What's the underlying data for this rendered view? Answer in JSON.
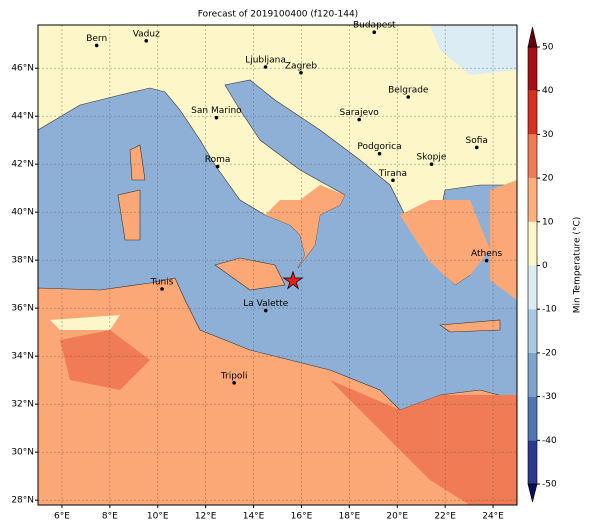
{
  "title": "Forecast of 2019100400 (f120-144)",
  "map": {
    "xlim": [
      5,
      25
    ],
    "ylim": [
      27.8,
      47.8
    ],
    "xticks": [
      {
        "value": 6,
        "label": "6°E"
      },
      {
        "value": 8,
        "label": "8°E"
      },
      {
        "value": 10,
        "label": "10°E"
      },
      {
        "value": 12,
        "label": "12°E"
      },
      {
        "value": 14,
        "label": "14°E"
      },
      {
        "value": 16,
        "label": "16°E"
      },
      {
        "value": 18,
        "label": "18°E"
      },
      {
        "value": 20,
        "label": "20°E"
      },
      {
        "value": 22,
        "label": "22°E"
      },
      {
        "value": 24,
        "label": "24°E"
      }
    ],
    "yticks": [
      {
        "value": 28,
        "label": "28°N"
      },
      {
        "value": 30,
        "label": "30°N"
      },
      {
        "value": 32,
        "label": "32°N"
      },
      {
        "value": 34,
        "label": "34°N"
      },
      {
        "value": 36,
        "label": "36°N"
      },
      {
        "value": 38,
        "label": "38°N"
      },
      {
        "value": 40,
        "label": "40°N"
      },
      {
        "value": 42,
        "label": "42°N"
      },
      {
        "value": 44,
        "label": "44°N"
      },
      {
        "value": 46,
        "label": "46°N"
      }
    ],
    "grid": true,
    "cities": [
      "Bern",
      "Vaduz",
      "Budapest",
      "Ljubljana",
      "Zagreb",
      "Belgrade",
      "San Marino",
      "Sarajevo",
      "Sofia",
      "Roma",
      "Podgorica",
      "Skopje",
      "Tirana",
      "Athens",
      "Tunis",
      "La Valette",
      "Tripoli"
    ]
  },
  "colorbar": {
    "label": "Min Temperature (°C)",
    "ticks": [
      -50,
      -40,
      -30,
      -20,
      -10,
      0,
      10,
      20,
      30,
      40,
      50
    ],
    "colors": [
      "#2b3a8f",
      "#4f77b4",
      "#7ea3cd",
      "#a9c9e2",
      "#dcecf4",
      "#fdf7c8",
      "#fcaf7c",
      "#f07b55",
      "#d7301f",
      "#a50f15"
    ]
  }
}
